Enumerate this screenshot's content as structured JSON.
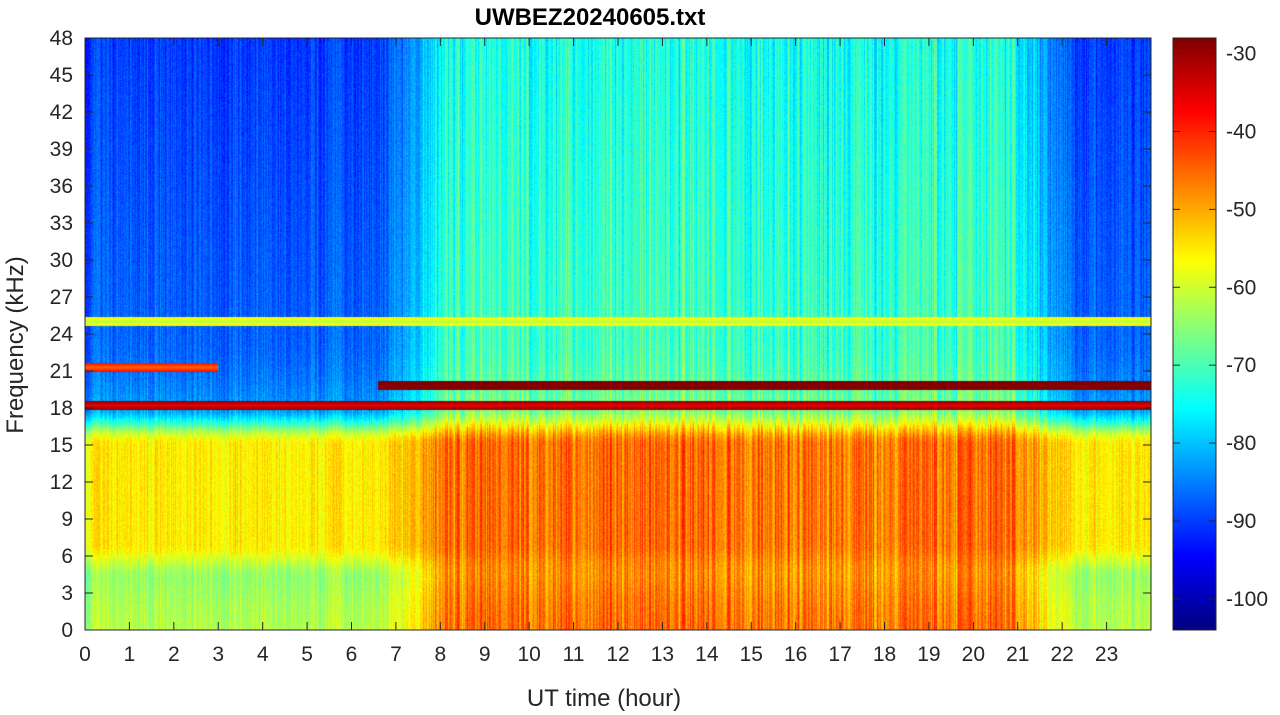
{
  "chart_data": {
    "type": "heatmap",
    "title": "UWBEZ20240605.txt",
    "xlabel": "UT time (hour)",
    "ylabel": "Frequency (kHz)",
    "xlim": [
      0,
      24
    ],
    "ylim": [
      0,
      48
    ],
    "x_ticks": [
      "0",
      "1",
      "2",
      "3",
      "4",
      "5",
      "6",
      "7",
      "8",
      "9",
      "10",
      "11",
      "12",
      "13",
      "14",
      "15",
      "16",
      "17",
      "18",
      "19",
      "20",
      "21",
      "22",
      "23"
    ],
    "y_ticks": [
      "0",
      "3",
      "6",
      "9",
      "12",
      "15",
      "18",
      "21",
      "24",
      "27",
      "30",
      "33",
      "36",
      "39",
      "42",
      "45",
      "48"
    ],
    "colormap": "jet",
    "clim": [
      -104,
      -28
    ],
    "colorbar_ticks": [
      "-30",
      "-40",
      "-50",
      "-60",
      "-70",
      "-80",
      "-90",
      "-100"
    ],
    "grid": false,
    "features": {
      "night_background_db": -88,
      "day_background_db": -72,
      "broadband_band_khz": [
        5,
        17
      ],
      "broadband_peak_db": -48,
      "broadband_hours": [
        7,
        21
      ],
      "strong_lines": [
        {
          "freq_khz": 19.8,
          "hours": [
            6.6,
            24
          ],
          "db": -30
        },
        {
          "freq_khz": 18.2,
          "hours": [
            0,
            24
          ],
          "db": -36
        },
        {
          "freq_khz": 21.3,
          "hours": [
            0,
            3
          ],
          "db": -45
        },
        {
          "freq_khz": 25.0,
          "hours": [
            0,
            24
          ],
          "db": -62
        }
      ]
    }
  }
}
